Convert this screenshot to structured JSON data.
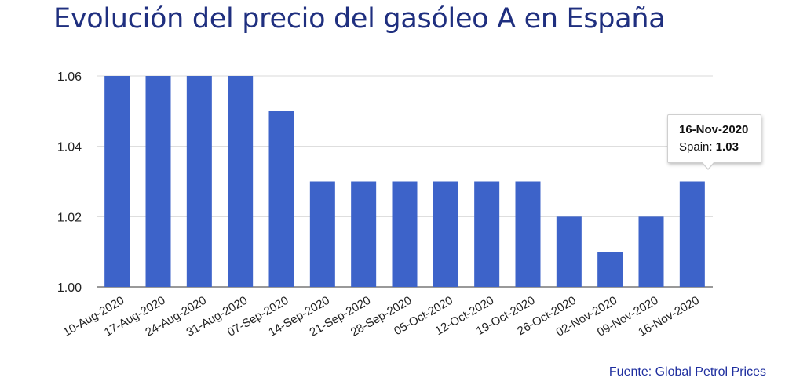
{
  "title": "Evolución del precio del gasóleo A en España",
  "source": "Fuente: Global Petrol Prices",
  "tooltip": {
    "date": "16-Nov-2020",
    "series_label": "Spain:",
    "value": "1.03"
  },
  "colors": {
    "bar": "#3d63c9",
    "title": "#1f2f7f",
    "grid": "#d9d9d9",
    "source": "#1f2f9f"
  },
  "chart_data": {
    "type": "bar",
    "categories": [
      "10-Aug-2020",
      "17-Aug-2020",
      "24-Aug-2020",
      "31-Aug-2020",
      "07-Sep-2020",
      "14-Sep-2020",
      "21-Sep-2020",
      "28-Sep-2020",
      "05-Oct-2020",
      "12-Oct-2020",
      "19-Oct-2020",
      "26-Oct-2020",
      "02-Nov-2020",
      "09-Nov-2020",
      "16-Nov-2020"
    ],
    "series": [
      {
        "name": "Spain",
        "values": [
          1.06,
          1.06,
          1.06,
          1.06,
          1.05,
          1.03,
          1.03,
          1.03,
          1.03,
          1.03,
          1.03,
          1.02,
          1.01,
          1.02,
          1.03
        ]
      }
    ],
    "yticks": [
      "1.00",
      "1.02",
      "1.04",
      "1.06"
    ],
    "ylim": [
      1.0,
      1.06
    ],
    "grid": true,
    "xlabel": "",
    "ylabel": ""
  }
}
